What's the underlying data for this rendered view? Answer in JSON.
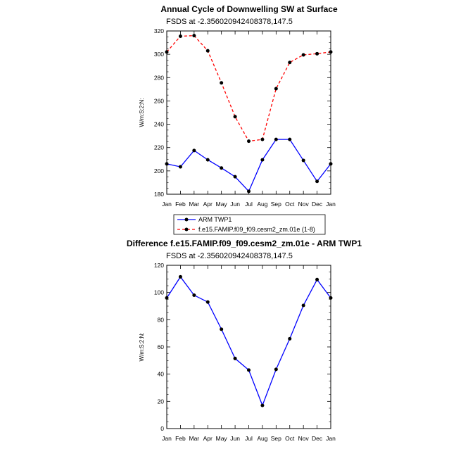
{
  "chart_data": [
    {
      "type": "line",
      "title": "Annual Cycle of Downwelling SW at Surface",
      "subtitle": "FSDS at -2.356020942408378,147.5",
      "xlabel": "",
      "ylabel": "W/m:S:2:N:",
      "categories": [
        "Jan",
        "Feb",
        "Mar",
        "Apr",
        "May",
        "Jun",
        "Jul",
        "Aug",
        "Sep",
        "Oct",
        "Nov",
        "Dec",
        "Jan"
      ],
      "ylim": [
        180,
        320
      ],
      "yticks": [
        180,
        200,
        220,
        240,
        260,
        280,
        300,
        320
      ],
      "grid": false,
      "legend_position": "below",
      "series": [
        {
          "name": "ARM TWP1",
          "color": "#0000ff",
          "style": "solid",
          "values": [
            206,
            203.5,
            217.5,
            209.5,
            202.5,
            195,
            182.5,
            209.5,
            227,
            227,
            209,
            191,
            206
          ]
        },
        {
          "name": "f.e15.FAMIP.f09_f09.cesm2_zm.01e (1-8)",
          "color": "#ff0000",
          "style": "dashed",
          "values": [
            302,
            315.5,
            316,
            303,
            275.5,
            246.5,
            225.5,
            227,
            270.5,
            293,
            299.5,
            300.5,
            302
          ]
        }
      ]
    },
    {
      "type": "line",
      "title": "Difference f.e15.FAMIP.f09_f09.cesm2_zm.01e - ARM TWP1",
      "subtitle": "FSDS at -2.356020942408378,147.5",
      "xlabel": "",
      "ylabel": "W/m:S:2:N:",
      "categories": [
        "Jan",
        "Feb",
        "Mar",
        "Apr",
        "May",
        "Jun",
        "Jul",
        "Aug",
        "Sep",
        "Oct",
        "Nov",
        "Dec",
        "Jan"
      ],
      "ylim": [
        0,
        120
      ],
      "yticks": [
        0,
        20,
        40,
        60,
        80,
        100,
        120
      ],
      "grid": false,
      "series": [
        {
          "color": "#0000ff",
          "style": "solid",
          "values": [
            96,
            111.5,
            98,
            93,
            73,
            51.5,
            43,
            17,
            43.5,
            66,
            90.5,
            109.5,
            96
          ]
        }
      ]
    }
  ]
}
